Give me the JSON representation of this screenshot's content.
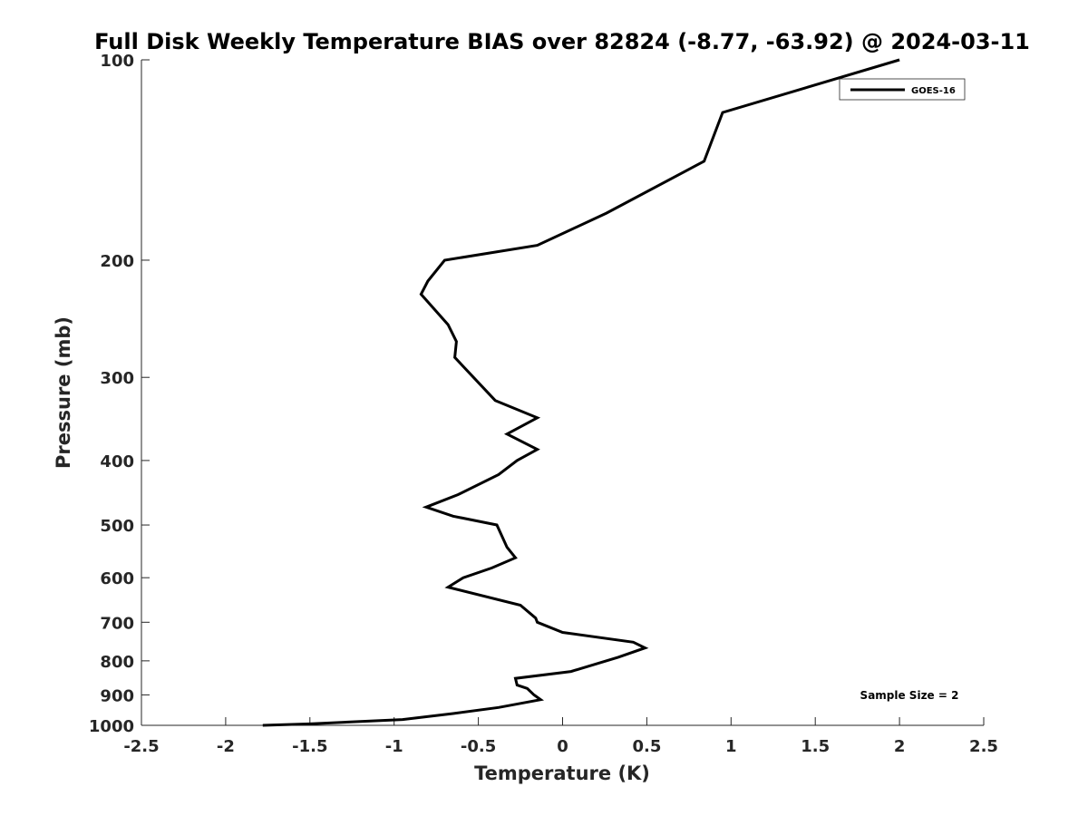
{
  "chart_data": {
    "type": "line",
    "title": "Full Disk Weekly Temperature BIAS over 82824 (-8.77, -63.92) @ 2024-03-11",
    "xlabel": "Temperature (K)",
    "ylabel": "Pressure (mb)",
    "xlim": [
      -2.5,
      2.5
    ],
    "ylim": [
      1000,
      100
    ],
    "y_scale": "log",
    "y_reversed": true,
    "x_ticks": [
      -2.5,
      -2,
      -1.5,
      -1,
      -0.5,
      0,
      0.5,
      1,
      1.5,
      2,
      2.5
    ],
    "x_tick_labels": [
      "-2.5",
      "-2",
      "-1.5",
      "-1",
      "-0.5",
      "0",
      "0.5",
      "1",
      "1.5",
      "2",
      "2.5"
    ],
    "y_ticks": [
      100,
      200,
      300,
      400,
      500,
      600,
      700,
      800,
      900,
      1000
    ],
    "y_tick_labels": [
      "100",
      "200",
      "300",
      "400",
      "500",
      "600",
      "700",
      "800",
      "900",
      "1000"
    ],
    "grid": false,
    "legend_position": "top-right",
    "annotation": "Sample Size = 2",
    "series": [
      {
        "name": "GOES-16",
        "color": "#000000",
        "x": [
          2.0,
          0.95,
          0.84,
          0.26,
          -0.15,
          -0.7,
          -0.8,
          -0.84,
          -0.68,
          -0.63,
          -0.64,
          -0.4,
          -0.15,
          -0.33,
          -0.15,
          -0.27,
          -0.38,
          -0.62,
          -0.81,
          -0.65,
          -0.39,
          -0.33,
          -0.28,
          -0.42,
          -0.59,
          -0.68,
          -0.25,
          -0.16,
          -0.15,
          0.0,
          0.42,
          0.49,
          0.33,
          0.05,
          -0.28,
          -0.27,
          -0.21,
          -0.17,
          -0.13,
          -0.38,
          -0.65,
          -0.95,
          -1.5,
          -1.78
        ],
        "y": [
          100,
          120,
          142,
          170,
          190,
          200,
          215,
          225,
          250,
          265,
          280,
          325,
          345,
          365,
          385,
          400,
          420,
          450,
          470,
          485,
          500,
          540,
          560,
          580,
          600,
          620,
          660,
          690,
          700,
          725,
          750,
          765,
          790,
          830,
          850,
          870,
          880,
          900,
          915,
          940,
          960,
          980,
          995,
          1000
        ]
      }
    ]
  }
}
